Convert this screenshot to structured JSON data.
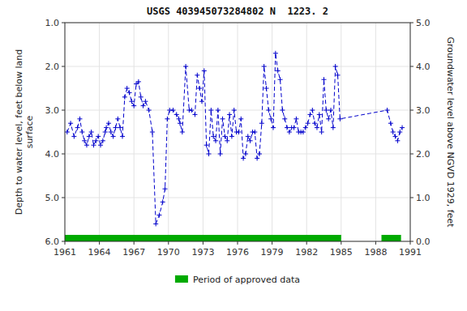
{
  "chart_data": {
    "type": "line",
    "title": "USGS 403945073284802 N  1223. 2",
    "y_label": "Depth to water level, feet below land\nsurface",
    "y2_label": "Groundwater level above NGVD 1929, feet",
    "xlim": [
      1961,
      1991
    ],
    "xticks": [
      1961,
      1964,
      1967,
      1970,
      1973,
      1976,
      1979,
      1982,
      1985,
      1988,
      1991
    ],
    "ylim": [
      6.0,
      1.0
    ],
    "yticks": [
      {
        "value": 1.0,
        "label": "1.0"
      },
      {
        "value": 2.0,
        "label": "2.0"
      },
      {
        "value": 3.0,
        "label": "3.0"
      },
      {
        "value": 4.0,
        "label": "4.0"
      },
      {
        "value": 5.0,
        "label": "5.0"
      },
      {
        "value": 6.0,
        "label": "6.0"
      }
    ],
    "y2lim": [
      0.0,
      5.0
    ],
    "y2ticks": [
      {
        "value": 0.0,
        "label": "0.0"
      },
      {
        "value": 1.0,
        "label": "1.0"
      },
      {
        "value": 2.0,
        "label": "2.0"
      },
      {
        "value": 3.0,
        "label": "3.0"
      },
      {
        "value": 4.0,
        "label": "4.0"
      },
      {
        "value": 5.0,
        "label": "5.0"
      }
    ],
    "grid": true,
    "legend": "bottom",
    "series": [
      {
        "type": "line",
        "color": "#0000cc",
        "marker": "plus",
        "line_style": "dashed",
        "x": [
          1961.2,
          1961.5,
          1961.8,
          1962.1,
          1962.3,
          1962.5,
          1962.7,
          1962.9,
          1963.1,
          1963.3,
          1963.5,
          1963.7,
          1963.9,
          1964.1,
          1964.3,
          1964.5,
          1964.6,
          1964.8,
          1965.0,
          1965.2,
          1965.4,
          1965.6,
          1965.8,
          1966.0,
          1966.2,
          1966.4,
          1966.6,
          1966.8,
          1967.0,
          1967.2,
          1967.4,
          1967.6,
          1967.8,
          1968.0,
          1968.3,
          1968.6,
          1968.9,
          1969.2,
          1969.5,
          1969.7,
          1969.9,
          1970.1,
          1970.4,
          1970.7,
          1970.9,
          1971.0,
          1971.2,
          1971.5,
          1971.8,
          1972.0,
          1972.3,
          1972.5,
          1972.7,
          1972.9,
          1973.1,
          1973.3,
          1973.5,
          1973.7,
          1973.9,
          1974.1,
          1974.3,
          1974.5,
          1974.7,
          1974.9,
          1975.1,
          1975.3,
          1975.5,
          1975.7,
          1975.9,
          1976.1,
          1976.3,
          1976.5,
          1976.7,
          1976.9,
          1977.1,
          1977.3,
          1977.5,
          1977.7,
          1977.9,
          1978.1,
          1978.3,
          1978.5,
          1978.7,
          1978.9,
          1979.1,
          1979.3,
          1979.5,
          1979.7,
          1979.9,
          1980.1,
          1980.3,
          1980.5,
          1980.7,
          1980.9,
          1981.1,
          1981.3,
          1981.5,
          1981.7,
          1981.9,
          1982.1,
          1982.3,
          1982.5,
          1982.7,
          1982.9,
          1983.1,
          1983.3,
          1983.5,
          1983.7,
          1983.9,
          1984.1,
          1984.3,
          1984.5,
          1984.7,
          1984.9,
          1989.0,
          1989.3,
          1989.5,
          1989.7,
          1989.9,
          1990.1,
          1990.3
        ],
        "values": [
          3.5,
          3.3,
          3.6,
          3.4,
          3.2,
          3.5,
          3.7,
          3.8,
          3.6,
          3.5,
          3.8,
          3.7,
          3.6,
          3.8,
          3.7,
          3.5,
          3.4,
          3.3,
          3.5,
          3.6,
          3.4,
          3.2,
          3.4,
          3.6,
          2.7,
          2.5,
          2.6,
          2.8,
          2.9,
          2.4,
          2.35,
          2.7,
          2.9,
          2.8,
          3.0,
          3.5,
          5.6,
          5.4,
          5.1,
          4.8,
          3.2,
          3.0,
          3.0,
          3.1,
          3.2,
          3.3,
          3.5,
          2.0,
          3.0,
          3.0,
          3.1,
          2.2,
          2.5,
          2.8,
          2.1,
          3.8,
          4.0,
          3.0,
          3.6,
          3.7,
          3.0,
          4.0,
          3.2,
          3.6,
          3.7,
          3.1,
          3.6,
          3.0,
          3.5,
          3.5,
          3.2,
          4.1,
          4.0,
          3.6,
          3.7,
          3.5,
          3.5,
          4.1,
          4.0,
          3.3,
          2.0,
          2.5,
          3.0,
          3.2,
          3.4,
          1.7,
          2.1,
          2.3,
          3.0,
          3.2,
          3.4,
          3.5,
          3.4,
          3.4,
          3.2,
          3.5,
          3.5,
          3.5,
          3.4,
          3.3,
          3.1,
          3.0,
          3.3,
          3.4,
          3.1,
          3.5,
          2.3,
          3.0,
          3.2,
          3.0,
          3.4,
          2.0,
          2.2,
          3.2,
          3.0,
          3.3,
          3.5,
          3.6,
          3.7,
          3.5,
          3.4
        ]
      },
      {
        "name": "Period of approved data",
        "type": "range",
        "color": "#00aa00",
        "start": [
          1961.0,
          1988.5
        ],
        "end": [
          1985.0,
          1990.2
        ]
      }
    ]
  }
}
